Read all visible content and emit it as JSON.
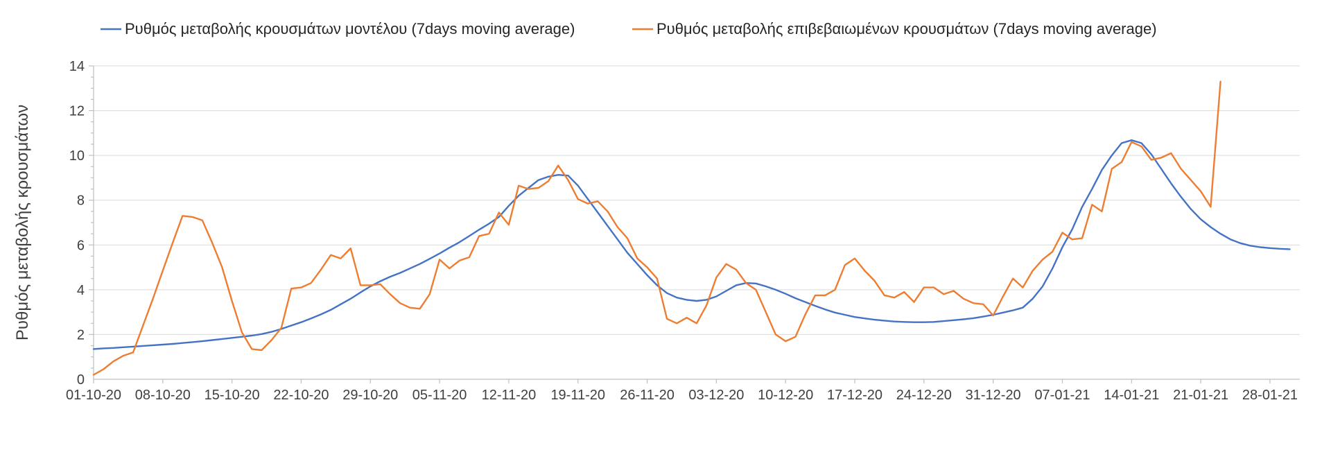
{
  "page": {
    "background": "#ffffff"
  },
  "chart_data": {
    "type": "line",
    "title": "",
    "xlabel": "",
    "ylabel": "Ρυθμός μεταβολής κρουσμάτων",
    "ylim": [
      0,
      14
    ],
    "y_tick_step": 2,
    "y_minor_tick_step": 0.5,
    "grid": "horizontal",
    "legend_position": "top",
    "gridline_color": "#d9d9d9",
    "axis_color": "#bfbfbf",
    "tick_label_color": "#3f3f3f",
    "x_tick_interval_days": 7,
    "x_tick_labels": [
      "01-10-20",
      "08-10-20",
      "15-10-20",
      "22-10-20",
      "29-10-20",
      "05-11-20",
      "12-11-20",
      "19-11-20",
      "26-11-20",
      "03-12-20",
      "10-12-20",
      "17-12-20",
      "24-12-20",
      "31-12-20",
      "07-01-21",
      "14-01-21",
      "21-01-21",
      "28-01-21"
    ],
    "series": [
      {
        "name": "Ρυθμός μεταβολής κρουσμάτων μοντέλου (7days moving average)",
        "color": "#4472C4",
        "start_date": "01-10-20",
        "values": [
          1.35,
          1.38,
          1.4,
          1.43,
          1.46,
          1.49,
          1.52,
          1.55,
          1.58,
          1.62,
          1.66,
          1.7,
          1.75,
          1.8,
          1.85,
          1.9,
          1.95,
          2.02,
          2.12,
          2.25,
          2.4,
          2.55,
          2.72,
          2.9,
          3.1,
          3.35,
          3.6,
          3.88,
          4.15,
          4.38,
          4.58,
          4.75,
          4.95,
          5.15,
          5.38,
          5.62,
          5.88,
          6.12,
          6.4,
          6.68,
          6.95,
          7.25,
          7.75,
          8.2,
          8.55,
          8.9,
          9.05,
          9.13,
          9.1,
          8.65,
          8.05,
          7.45,
          6.85,
          6.25,
          5.65,
          5.15,
          4.65,
          4.2,
          3.85,
          3.65,
          3.55,
          3.5,
          3.55,
          3.7,
          3.95,
          4.2,
          4.3,
          4.28,
          4.15,
          4.0,
          3.82,
          3.62,
          3.45,
          3.28,
          3.12,
          2.98,
          2.88,
          2.78,
          2.72,
          2.66,
          2.62,
          2.58,
          2.56,
          2.55,
          2.55,
          2.56,
          2.6,
          2.64,
          2.68,
          2.73,
          2.8,
          2.88,
          2.98,
          3.08,
          3.2,
          3.6,
          4.15,
          4.95,
          5.9,
          6.7,
          7.7,
          8.5,
          9.35,
          10.0,
          10.55,
          10.68,
          10.55,
          10.05,
          9.4,
          8.75,
          8.15,
          7.6,
          7.15,
          6.8,
          6.5,
          6.25,
          6.08,
          5.97,
          5.9,
          5.86,
          5.83,
          5.81
        ]
      },
      {
        "name": "Ρυθμός μεταβολής επιβεβαιωμένων κρουσμάτων (7days moving average)",
        "color": "#ED7D31",
        "start_date": "01-10-20",
        "values": [
          0.2,
          0.45,
          0.8,
          1.05,
          1.2,
          2.4,
          3.6,
          4.85,
          6.1,
          7.3,
          7.25,
          7.1,
          6.1,
          5.0,
          3.5,
          2.1,
          1.35,
          1.3,
          1.75,
          2.3,
          4.05,
          4.1,
          4.3,
          4.9,
          5.55,
          5.4,
          5.85,
          4.2,
          4.2,
          4.25,
          3.8,
          3.4,
          3.2,
          3.15,
          3.8,
          5.35,
          4.95,
          5.3,
          5.45,
          6.4,
          6.5,
          7.45,
          6.9,
          8.65,
          8.5,
          8.55,
          8.85,
          9.55,
          8.9,
          8.05,
          7.85,
          7.95,
          7.5,
          6.8,
          6.3,
          5.4,
          5.0,
          4.5,
          2.7,
          2.5,
          2.75,
          2.5,
          3.3,
          4.55,
          5.15,
          4.9,
          4.3,
          4.0,
          3.0,
          2.0,
          1.7,
          1.9,
          2.9,
          3.75,
          3.75,
          4.0,
          5.1,
          5.4,
          4.85,
          4.4,
          3.75,
          3.65,
          3.9,
          3.45,
          4.1,
          4.1,
          3.8,
          3.95,
          3.6,
          3.4,
          3.35,
          2.85,
          3.7,
          4.5,
          4.1,
          4.85,
          5.35,
          5.7,
          6.55,
          6.25,
          6.3,
          7.8,
          7.5,
          9.4,
          9.7,
          10.6,
          10.4,
          9.8,
          9.9,
          10.1,
          9.4,
          8.9,
          8.4,
          7.7,
          13.3
        ]
      }
    ],
    "y_tick_labels": [
      "0",
      "2",
      "4",
      "6",
      "8",
      "10",
      "12",
      "14"
    ]
  }
}
